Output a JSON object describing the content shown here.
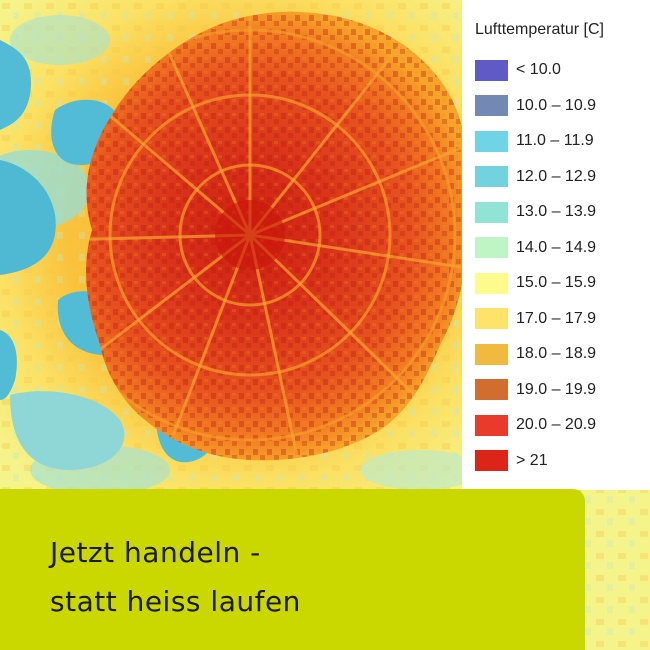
{
  "legend": {
    "title": "Lufttemperatur [C]",
    "items": [
      {
        "label": "< 10.0",
        "color": "#5f5ac6"
      },
      {
        "label": "10.0 – 10.9",
        "color": "#7389b4"
      },
      {
        "label": "11.0 – 11.9",
        "color": "#6fd4e6"
      },
      {
        "label": "12.0 – 12.9",
        "color": "#72d3df"
      },
      {
        "label": "13.0 – 13.9",
        "color": "#91e3d5"
      },
      {
        "label": "14.0 – 14.9",
        "color": "#bff5c4"
      },
      {
        "label": "15.0 – 15.9",
        "color": "#fdfb8c"
      },
      {
        "label": "17.0 – 17.9",
        "color": "#fde36a"
      },
      {
        "label": "18.0 – 18.9",
        "color": "#efba3f"
      },
      {
        "label": "19.0 – 19.9",
        "color": "#d26d30"
      },
      {
        "label": "20.0 – 20.9",
        "color": "#e93a2b"
      },
      {
        "label": "> 21",
        "color": "#dc2418"
      }
    ]
  },
  "slogan": {
    "line1": "Jetzt handeln -",
    "line2": "statt heiss laufen",
    "background": "#cbd800"
  },
  "map": {
    "colors": {
      "lake": "#52bcd6",
      "cool": "#98ddd5",
      "rural": "#f7f48a",
      "warm": "#f8bb2e",
      "hot": "#ec5a24",
      "core": "#d52a14"
    }
  }
}
